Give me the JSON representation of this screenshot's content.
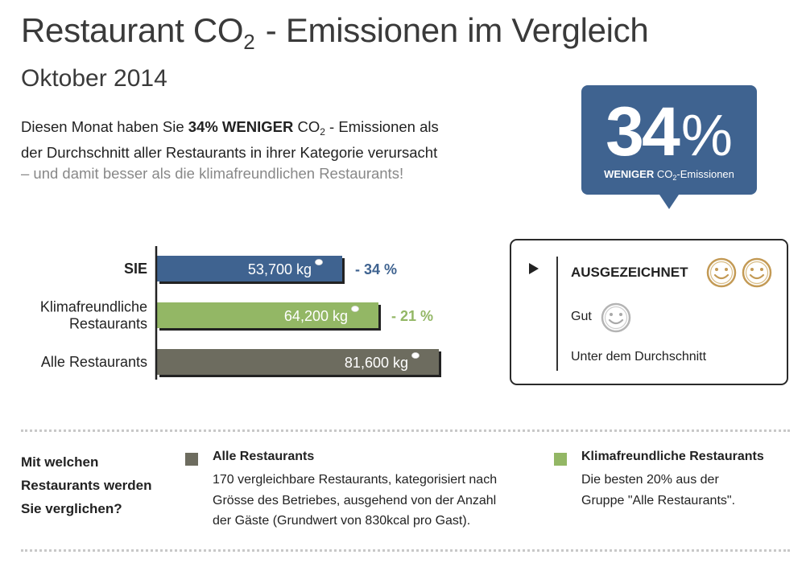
{
  "header": {
    "title_main": "Restaurant CO",
    "title_sub": "2",
    "title_rest": " - Emissionen im Vergleich",
    "period": "Oktober 2014"
  },
  "intro": {
    "line1_pre": "Diesen Monat haben Sie ",
    "line1_bold": "34% WENIGER",
    "line1_mid": " CO",
    "line1_sub": "2",
    "line1_post": " - Emissionen als",
    "line2": "der Durchschnitt aller Restaurants in ihrer Kategorie verursacht",
    "line3": "– und damit besser als die klimafreundlichen Restaurants!"
  },
  "badge": {
    "value": "34",
    "unit": "%",
    "caption_bold": "WENIGER",
    "caption_pre": " CO",
    "caption_sub": "2",
    "caption_post": "-Emissionen"
  },
  "chart_data": {
    "type": "bar",
    "orientation": "horizontal",
    "categories": [
      "SIE",
      "Klimafreundliche Restaurants",
      "Alle Restaurants"
    ],
    "values": [
      53700,
      64200,
      81600
    ],
    "value_labels": [
      "53,700 kg",
      "64,200 kg",
      "81,600 kg"
    ],
    "differences": [
      "- 34 %",
      "- 21 %",
      ""
    ],
    "colors": [
      "#3f6390",
      "#93b765",
      "#6d6c5f"
    ],
    "diff_colors": [
      "#3f6390",
      "#93b765",
      ""
    ],
    "category_lines": [
      [
        "SIE"
      ],
      [
        "Klimafreundliche",
        "Restaurants"
      ],
      [
        "Alle Restaurants"
      ]
    ],
    "bold_category": [
      true,
      false,
      false
    ],
    "xlim": [
      0,
      81600
    ]
  },
  "rating": {
    "excellent": "AUSGEZEICHNET",
    "good": "Gut",
    "below": "Unter dem Durchschnitt",
    "gold_color": "#c39a55",
    "grey_color": "#b4b4b4"
  },
  "comparison": {
    "question": [
      "Mit welchen",
      "Restaurants werden",
      "Sie verglichen?"
    ],
    "all_title": "Alle Restaurants",
    "all_desc": [
      "170 vergleichbare Restaurants, kategorisiert nach",
      "Grösse des Betriebes, ausgehend von der Anzahl",
      "der Gäste (Grundwert von 830kcal pro Gast)."
    ],
    "climate_title": "Klimafreundliche Restaurants",
    "climate_desc": [
      "Die besten 20% aus der",
      "Gruppe \"Alle Restaurants\"."
    ]
  }
}
